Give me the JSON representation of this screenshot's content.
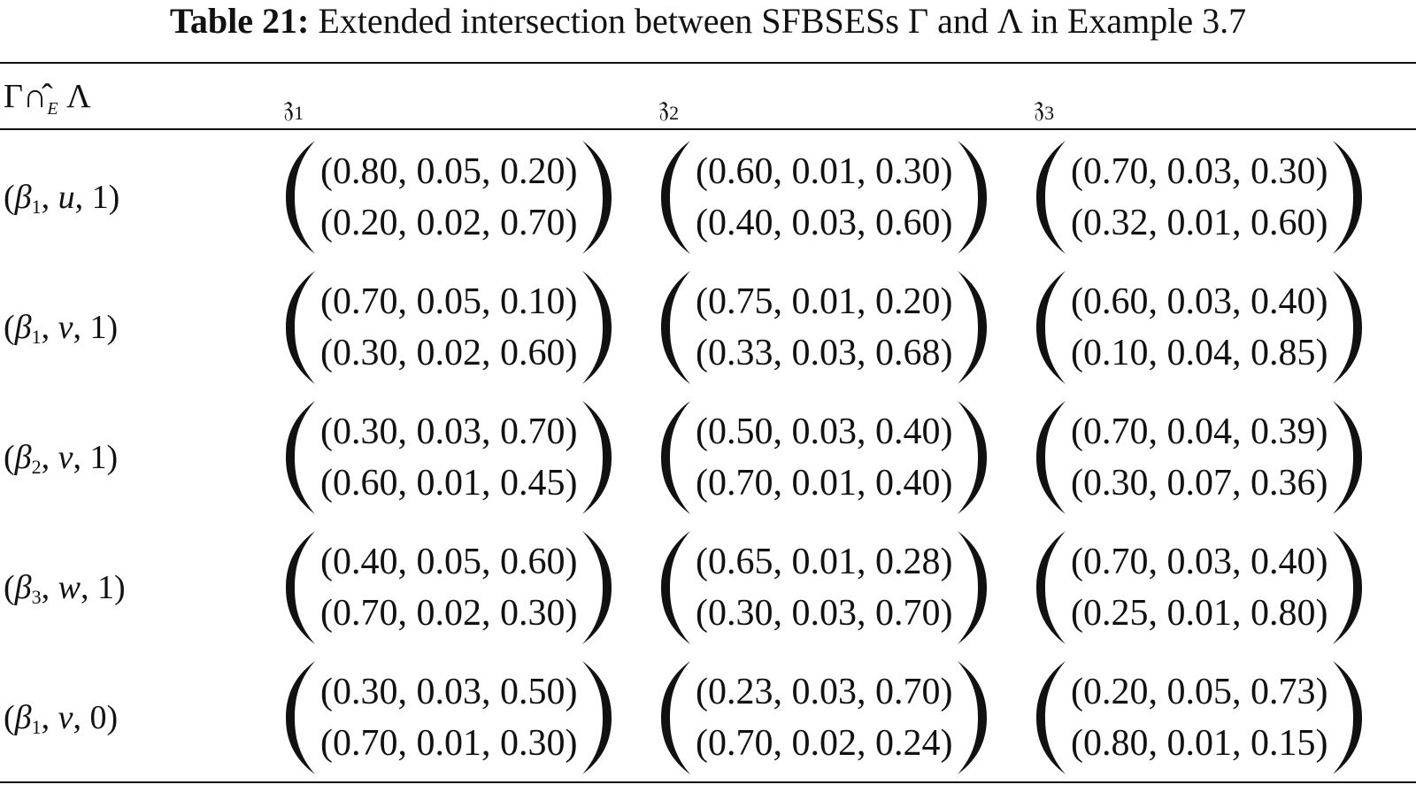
{
  "caption": {
    "label": "Table 21:",
    "text": "Extended intersection between SFBSESs Γ and Λ in Example 3.7"
  },
  "header": {
    "corner": {
      "left": "Γ",
      "op": "∩̂",
      "sub": "E",
      "right": "Λ"
    },
    "columns": [
      {
        "sym": "𝔷",
        "sub": "1"
      },
      {
        "sym": "𝔷",
        "sub": "2"
      },
      {
        "sym": "𝔷",
        "sub": "3"
      }
    ]
  },
  "rows": [
    {
      "label": {
        "open": "(",
        "greek": "β",
        "sub": "1",
        "mid": ", ",
        "var": "u",
        "tail": ", 1)"
      },
      "cells": [
        [
          "(0.80, 0.05, 0.20)",
          "(0.20, 0.02, 0.70)"
        ],
        [
          "(0.60, 0.01, 0.30)",
          "(0.40, 0.03, 0.60)"
        ],
        [
          "(0.70, 0.03, 0.30)",
          "(0.32, 0.01, 0.60)"
        ]
      ]
    },
    {
      "label": {
        "open": "(",
        "greek": "β",
        "sub": "1",
        "mid": ", ",
        "var": "v",
        "tail": ", 1)"
      },
      "cells": [
        [
          "(0.70, 0.05, 0.10)",
          "(0.30, 0.02, 0.60)"
        ],
        [
          "(0.75, 0.01, 0.20)",
          "(0.33, 0.03, 0.68)"
        ],
        [
          "(0.60, 0.03, 0.40)",
          "(0.10, 0.04, 0.85)"
        ]
      ]
    },
    {
      "label": {
        "open": "(",
        "greek": "β",
        "sub": "2",
        "mid": ", ",
        "var": "v",
        "tail": ", 1)"
      },
      "cells": [
        [
          "(0.30, 0.03, 0.70)",
          "(0.60, 0.01, 0.45)"
        ],
        [
          "(0.50, 0.03, 0.40)",
          "(0.70, 0.01, 0.40)"
        ],
        [
          "(0.70, 0.04, 0.39)",
          "(0.30, 0.07, 0.36)"
        ]
      ]
    },
    {
      "label": {
        "open": "(",
        "greek": "β",
        "sub": "3",
        "mid": ", ",
        "var": "w",
        "tail": ", 1)"
      },
      "cells": [
        [
          "(0.40, 0.05, 0.60)",
          "(0.70, 0.02, 0.30)"
        ],
        [
          "(0.65, 0.01, 0.28)",
          "(0.30, 0.03, 0.70)"
        ],
        [
          "(0.70, 0.03, 0.40)",
          "(0.25, 0.01, 0.80)"
        ]
      ]
    },
    {
      "label": {
        "open": "(",
        "greek": "β",
        "sub": "1",
        "mid": ", ",
        "var": "v",
        "tail": ", 0)"
      },
      "cells": [
        [
          "(0.30, 0.03, 0.50)",
          "(0.70, 0.01, 0.30)"
        ],
        [
          "(0.23, 0.03, 0.70)",
          "(0.70, 0.02, 0.24)"
        ],
        [
          "(0.20, 0.05, 0.73)",
          "(0.80, 0.01, 0.15)"
        ]
      ]
    }
  ]
}
